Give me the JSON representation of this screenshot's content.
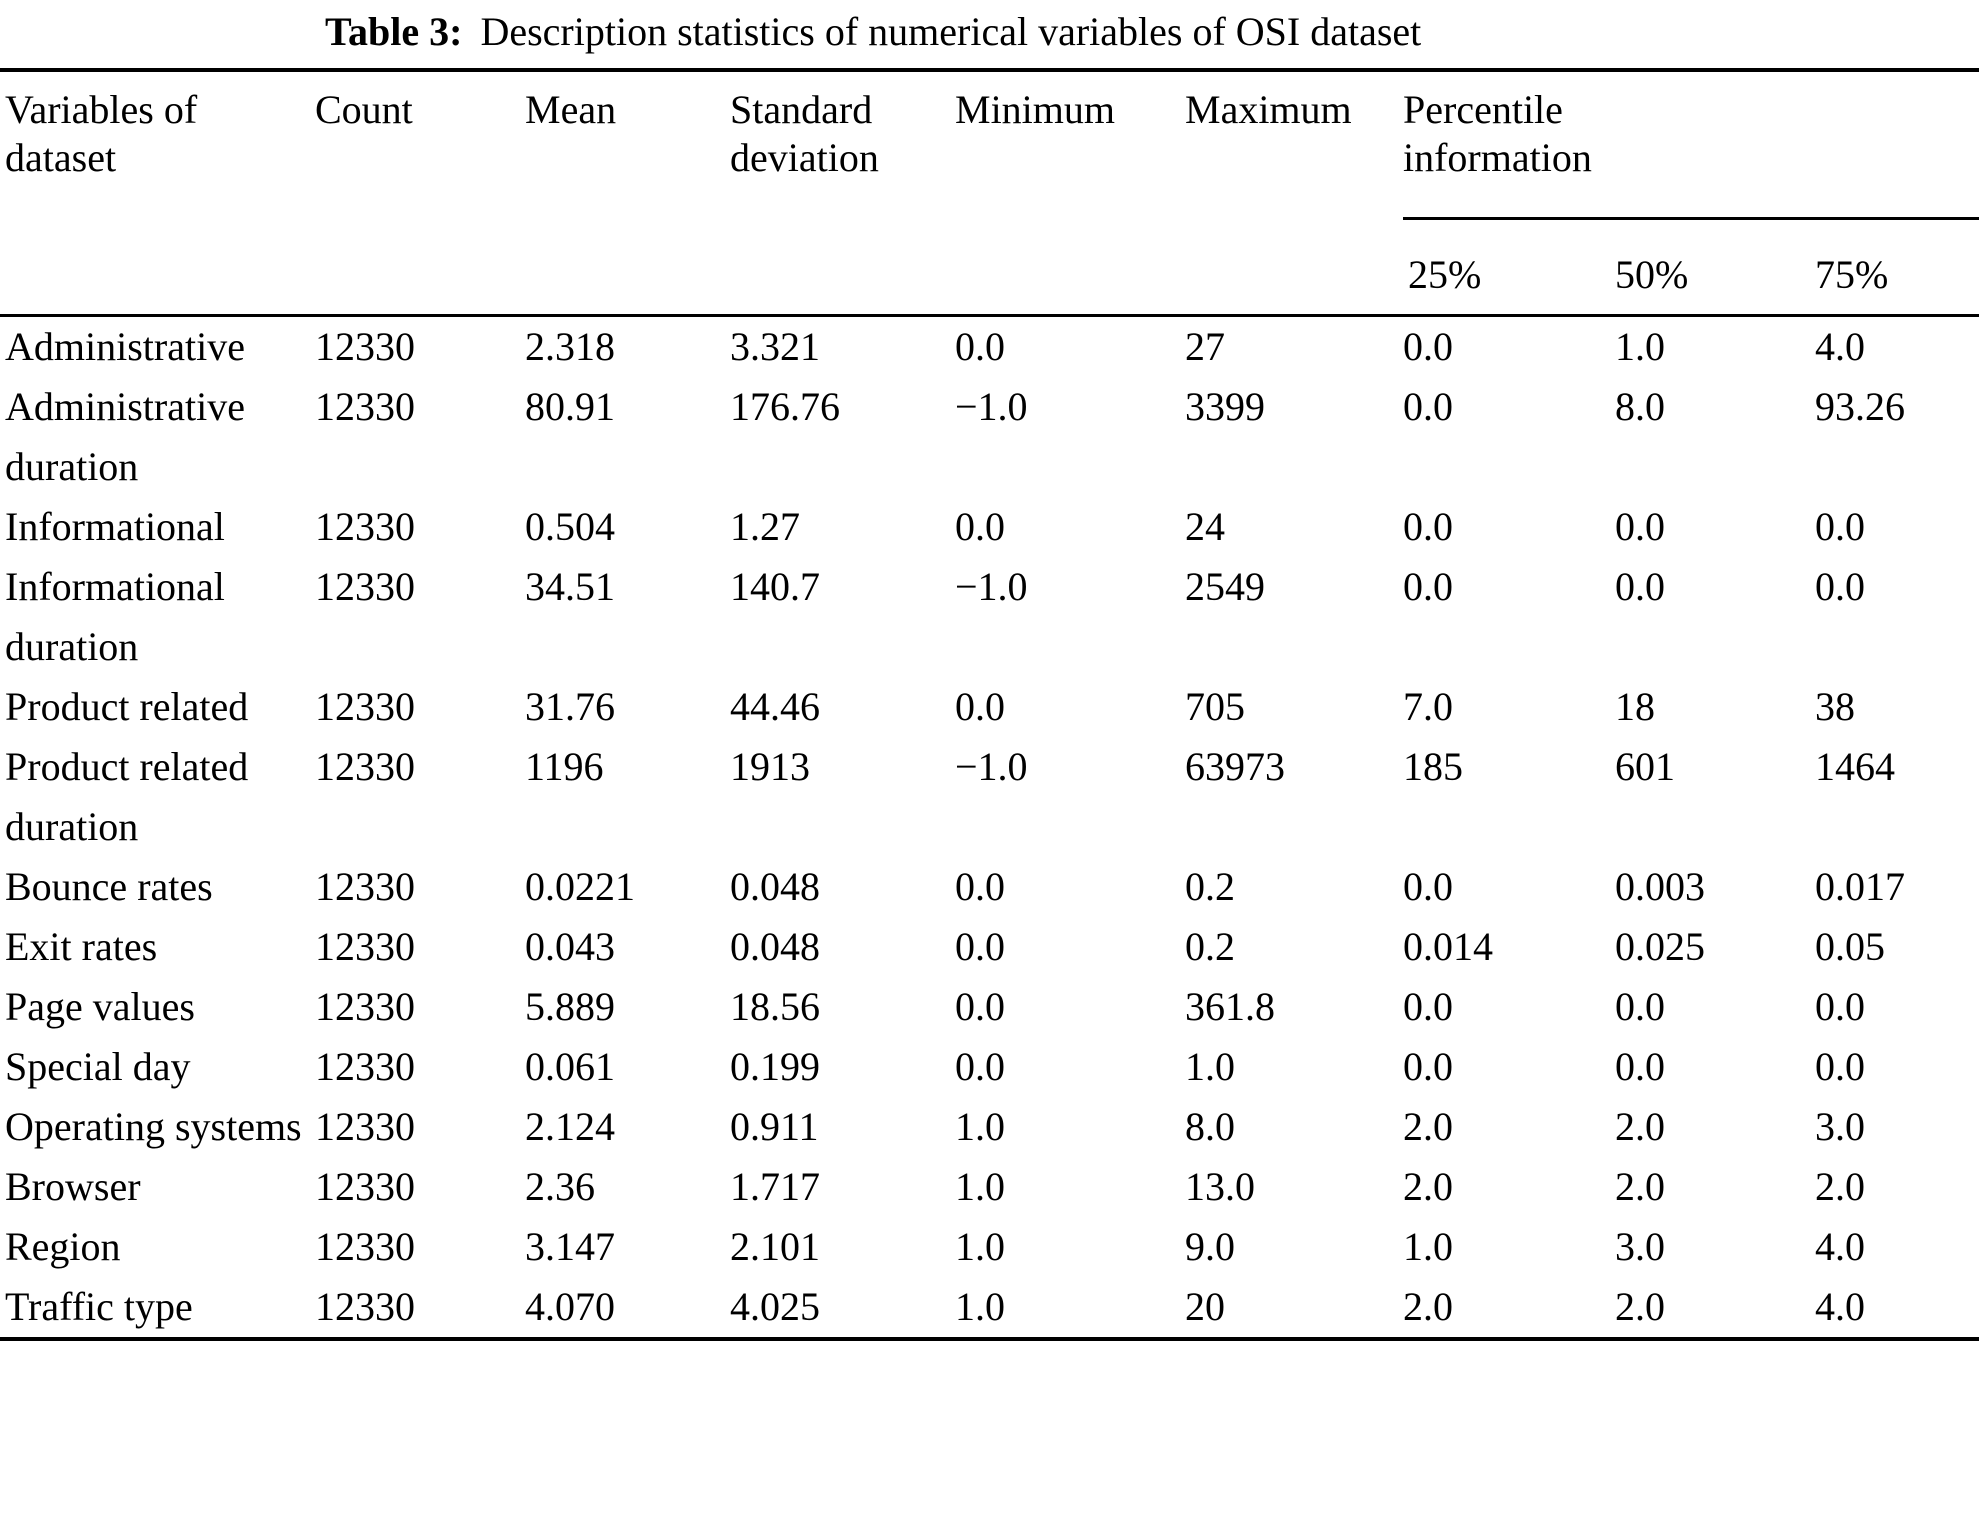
{
  "caption": {
    "label": "Table 3:",
    "text": "Description statistics of numerical variables of OSI dataset"
  },
  "table": {
    "columns": [
      "Variables of dataset",
      "Count",
      "Mean",
      "Standard deviation",
      "Minimum",
      "Maximum",
      "Percentile information"
    ],
    "percentile_columns": [
      "25%",
      "50%",
      "75%"
    ],
    "rows": [
      [
        "Administrative",
        "12330",
        "2.318",
        "3.321",
        "0.0",
        "27",
        "0.0",
        "1.0",
        "4.0"
      ],
      [
        "Administrative duration",
        "12330",
        "80.91",
        "176.76",
        "−1.0",
        "3399",
        "0.0",
        "8.0",
        "93.26"
      ],
      [
        "Informational",
        "12330",
        "0.504",
        "1.27",
        "0.0",
        "24",
        "0.0",
        "0.0",
        "0.0"
      ],
      [
        "Informational duration",
        "12330",
        "34.51",
        "140.7",
        "−1.0",
        "2549",
        "0.0",
        "0.0",
        "0.0"
      ],
      [
        "Product related",
        "12330",
        "31.76",
        "44.46",
        "0.0",
        "705",
        "7.0",
        "18",
        "38"
      ],
      [
        "Product related duration",
        "12330",
        "1196",
        "1913",
        "−1.0",
        "63973",
        "185",
        "601",
        "1464"
      ],
      [
        "Bounce rates",
        "12330",
        "0.0221",
        "0.048",
        "0.0",
        "0.2",
        "0.0",
        "0.003",
        "0.017"
      ],
      [
        "Exit rates",
        "12330",
        "0.043",
        "0.048",
        "0.0",
        "0.2",
        "0.014",
        "0.025",
        "0.05"
      ],
      [
        "Page values",
        "12330",
        "5.889",
        "18.56",
        "0.0",
        "361.8",
        "0.0",
        "0.0",
        "0.0"
      ],
      [
        "Special day",
        "12330",
        "0.061",
        "0.199",
        "0.0",
        "1.0",
        "0.0",
        "0.0",
        "0.0"
      ],
      [
        "Operating systems",
        "12330",
        "2.124",
        "0.911",
        "1.0",
        "8.0",
        "2.0",
        "2.0",
        "3.0"
      ],
      [
        "Browser",
        "12330",
        "2.36",
        "1.717",
        "1.0",
        "13.0",
        "2.0",
        "2.0",
        "2.0"
      ],
      [
        "Region",
        "12330",
        "3.147",
        "2.101",
        "1.0",
        "9.0",
        "1.0",
        "3.0",
        "4.0"
      ],
      [
        "Traffic type",
        "12330",
        "4.070",
        "4.025",
        "1.0",
        "20",
        "2.0",
        "2.0",
        "4.0"
      ]
    ]
  }
}
